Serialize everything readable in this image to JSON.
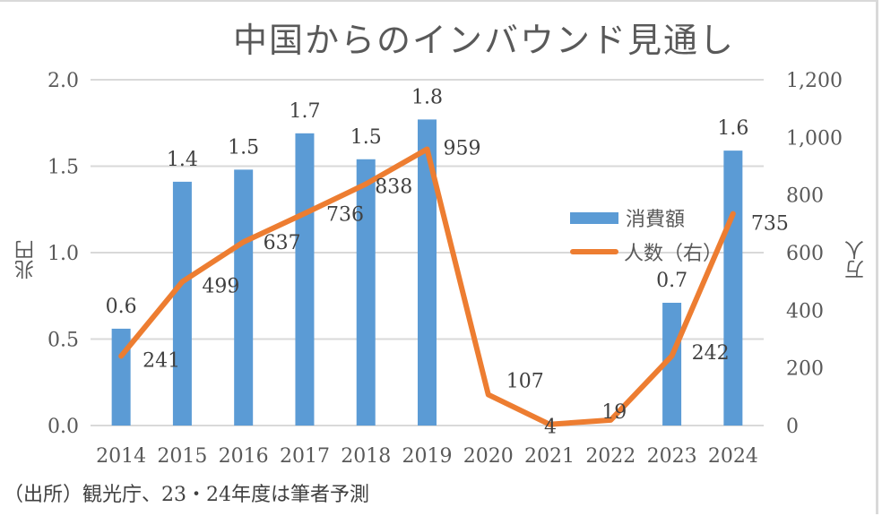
{
  "chart_data": {
    "type": "bar+line",
    "title": "中国からのインバウンド見通し",
    "categories": [
      "2014",
      "2015",
      "2016",
      "2017",
      "2018",
      "2019",
      "2020",
      "2021",
      "2022",
      "2023",
      "2024"
    ],
    "series": [
      {
        "name": "消費額",
        "type": "bar",
        "axis": "left",
        "color": "#5b9bd5",
        "values": [
          0.56,
          1.41,
          1.48,
          1.69,
          1.54,
          1.77,
          null,
          null,
          null,
          0.71,
          1.59
        ],
        "labels": [
          "0.6",
          "1.4",
          "1.5",
          "1.7",
          "1.5",
          "1.8",
          "",
          "",
          "",
          "0.7",
          "1.6"
        ]
      },
      {
        "name": "人数（右）",
        "type": "line",
        "axis": "right",
        "color": "#ed7d31",
        "values": [
          241,
          499,
          637,
          736,
          838,
          959,
          107,
          4,
          19,
          242,
          735
        ],
        "labels": [
          "241",
          "499",
          "637",
          "736",
          "838",
          "959",
          "107",
          "4",
          "19",
          "242",
          "735"
        ]
      }
    ],
    "y_left": {
      "label": "兆円",
      "ylim": [
        0,
        2.0
      ],
      "ticks": [
        "0.0",
        "0.5",
        "1.0",
        "1.5",
        "2.0"
      ]
    },
    "y_right": {
      "label": "万人",
      "ylim": [
        0,
        1200
      ],
      "ticks": [
        "0",
        "200",
        "400",
        "600",
        "800",
        "1,000",
        "1,200"
      ]
    },
    "grid": true,
    "legend": {
      "position": "center-right",
      "entries": [
        "消費額",
        "人数（右）"
      ]
    },
    "source": "（出所）観光庁、23・24年度は筆者予測"
  }
}
